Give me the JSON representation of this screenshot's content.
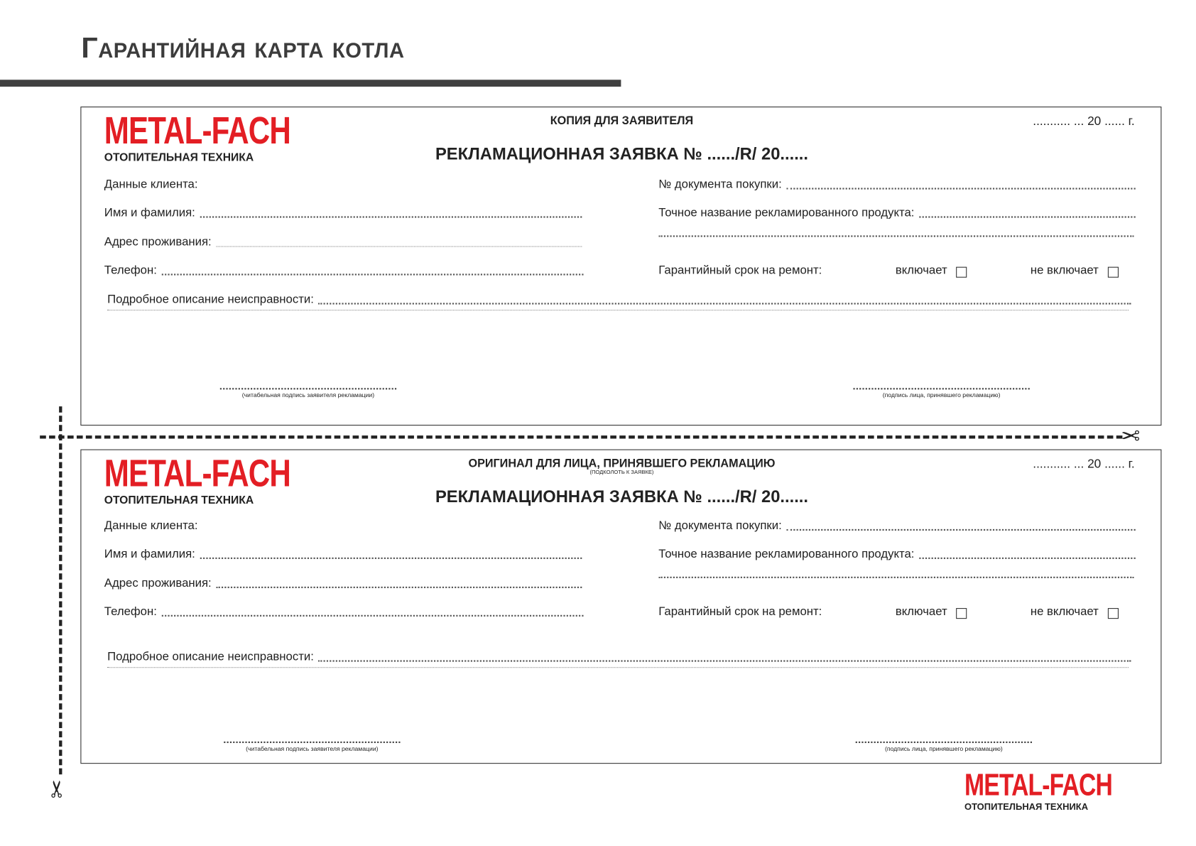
{
  "page_title": "Гарантийная карта котла",
  "logo": {
    "mark": "METAL-FACH",
    "subtitle": "ОТОПИТЕЛЬНАЯ ТЕХНИКА",
    "color": "#e31e24"
  },
  "forms": [
    {
      "header": "КОПИЯ ДЛЯ ЗАЯВИТЕЛЯ",
      "date": "........... ... 20 ...... г.",
      "claim_title": "РЕКЛАМАЦИОННАЯ ЗАЯВКА № ....../R/ 20......",
      "client_data": "Данные клиента:",
      "name": "Имя и фамилия:",
      "address": "Адрес проживания:",
      "phone": "Телефон:",
      "purchase_doc": "№ документа покупки:",
      "product_name": "Точное название рекламированного продукта:",
      "warranty": "Гарантийный срок на ремонт:",
      "includes": "включает",
      "not_includes": "не включает",
      "description": "Подробное описание неисправности:",
      "sig_applicant": "(читабельная подпись заявителя рекламации)",
      "sig_receiver": "(подпись лица, принявшего рекламацию)"
    },
    {
      "header": "ОРИГИНАЛ ДЛЯ ЛИЦА, ПРИНЯВШЕГО РЕКЛАМАЦИЮ",
      "header_sub": "(ПОДКОЛОТЬ К ЗАЯВКЕ)",
      "date": "........... ... 20 ...... г.",
      "claim_title": "РЕКЛАМАЦИОННАЯ ЗАЯВКА № ....../R/ 20......",
      "client_data": "Данные клиента:",
      "name": "Имя и фамилия:",
      "address": "Адрес проживания:",
      "phone": "Телефон:",
      "purchase_doc": "№ документа покупки:",
      "product_name": "Точное название рекламированного продукта:",
      "warranty": "Гарантийный срок на ремонт:",
      "includes": "включает",
      "not_includes": "не включает",
      "description": "Подробное описание неисправности:",
      "sig_applicant": "(читабельная подпись заявителя рекламации)",
      "sig_receiver": "(подпись лица, принявшего рекламацию)"
    }
  ],
  "icons": {
    "cut": "scissors-icon"
  }
}
